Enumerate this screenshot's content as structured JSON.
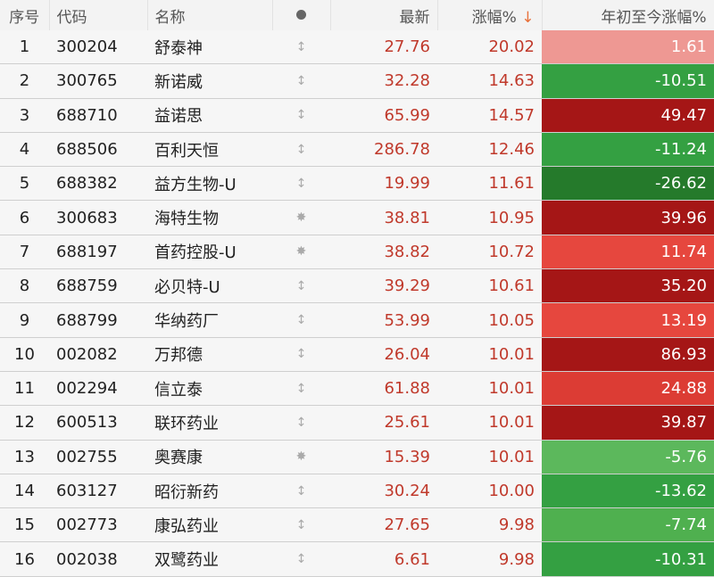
{
  "header": {
    "idx": "序号",
    "code": "代码",
    "name": "名称",
    "dot": "dot-icon",
    "price": "最新",
    "change": "涨幅%",
    "sort_icon": "↓",
    "ytd": "年初至今涨幅%"
  },
  "rows": [
    {
      "idx": "1",
      "code": "300204",
      "name": "舒泰神",
      "icon": "↕",
      "price": "27.76",
      "change": "20.02",
      "ytd": "1.61",
      "color": "#ee9893"
    },
    {
      "idx": "2",
      "code": "300765",
      "name": "新诺威",
      "icon": "↕",
      "price": "32.28",
      "change": "14.63",
      "ytd": "-10.51",
      "color": "#34a042"
    },
    {
      "idx": "3",
      "code": "688710",
      "name": "益诺思",
      "icon": "↕",
      "price": "65.99",
      "change": "14.57",
      "ytd": "49.47",
      "color": "#a51616"
    },
    {
      "idx": "4",
      "code": "688506",
      "name": "百利天恒",
      "icon": "↕",
      "price": "286.78",
      "change": "12.46",
      "ytd": "-11.24",
      "color": "#34a042"
    },
    {
      "idx": "5",
      "code": "688382",
      "name": "益方生物-U",
      "icon": "↕",
      "price": "19.99",
      "change": "11.61",
      "ytd": "-26.62",
      "color": "#257a2b"
    },
    {
      "idx": "6",
      "code": "300683",
      "name": "海特生物",
      "icon": "✸",
      "price": "38.81",
      "change": "10.95",
      "ytd": "39.96",
      "color": "#a51616"
    },
    {
      "idx": "7",
      "code": "688197",
      "name": "首药控股-U",
      "icon": "✸",
      "price": "38.82",
      "change": "10.72",
      "ytd": "11.74",
      "color": "#e6473e"
    },
    {
      "idx": "8",
      "code": "688759",
      "name": "必贝特-U",
      "icon": "↕",
      "price": "39.29",
      "change": "10.61",
      "ytd": "35.20",
      "color": "#a51616"
    },
    {
      "idx": "9",
      "code": "688799",
      "name": "华纳药厂",
      "icon": "↕",
      "price": "53.99",
      "change": "10.05",
      "ytd": "13.19",
      "color": "#e6473e"
    },
    {
      "idx": "10",
      "code": "002082",
      "name": "万邦德",
      "icon": "↕",
      "price": "26.04",
      "change": "10.01",
      "ytd": "86.93",
      "color": "#a51616"
    },
    {
      "idx": "11",
      "code": "002294",
      "name": "信立泰",
      "icon": "↕",
      "price": "61.88",
      "change": "10.01",
      "ytd": "24.88",
      "color": "#dc3c34"
    },
    {
      "idx": "12",
      "code": "600513",
      "name": "联环药业",
      "icon": "↕",
      "price": "25.61",
      "change": "10.01",
      "ytd": "39.87",
      "color": "#a51616"
    },
    {
      "idx": "13",
      "code": "002755",
      "name": "奥赛康",
      "icon": "✸",
      "price": "15.39",
      "change": "10.01",
      "ytd": "-5.76",
      "color": "#5cb85c"
    },
    {
      "idx": "14",
      "code": "603127",
      "name": "昭衍新药",
      "icon": "↕",
      "price": "30.24",
      "change": "10.00",
      "ytd": "-13.62",
      "color": "#34a042"
    },
    {
      "idx": "15",
      "code": "002773",
      "name": "康弘药业",
      "icon": "↕",
      "price": "27.65",
      "change": "9.98",
      "ytd": "-7.74",
      "color": "#4fb04f"
    },
    {
      "idx": "16",
      "code": "002038",
      "name": "双鹭药业",
      "icon": "↕",
      "price": "6.61",
      "change": "9.98",
      "ytd": "-10.31",
      "color": "#34a042"
    }
  ]
}
